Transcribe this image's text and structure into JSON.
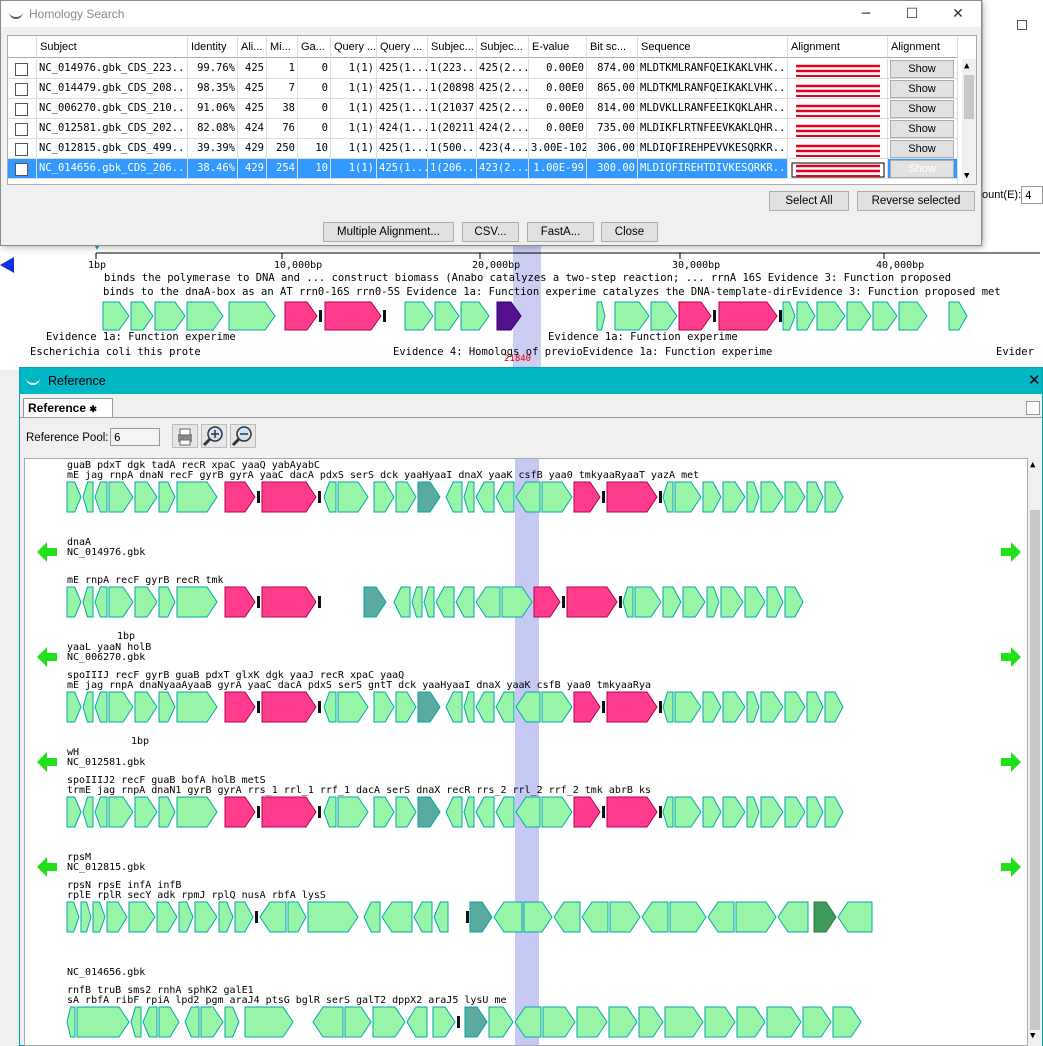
{
  "homology": {
    "title": "Homology Search",
    "columns": [
      "Subject",
      "Identity",
      "Ali...",
      "Mi...",
      "Ga...",
      "Query ...",
      "Query ...",
      "Subjec...",
      "Subjec...",
      "E-value",
      "Bit sc...",
      "Sequence",
      "Alignment",
      "Alignment"
    ],
    "rows": [
      {
        "subject": "NC_014976.gbk_CDS_223...",
        "identity": "99.76%",
        "ali": "425",
        "mi": "1",
        "ga": "0",
        "q1": "1(1)",
        "q2": "425(1...",
        "s1": "1(223...",
        "s2": "425(2...",
        "evalue": "0.00E0",
        "bit": "874.00",
        "seq": "MLDTKMLRANFQEIKAKLVHK...",
        "show": "Show",
        "selected": false
      },
      {
        "subject": "NC_014479.gbk_CDS_208...",
        "identity": "98.35%",
        "ali": "425",
        "mi": "7",
        "ga": "0",
        "q1": "1(1)",
        "q2": "425(1...",
        "s1": "1(20898)",
        "s2": "425(2...",
        "evalue": "0.00E0",
        "bit": "865.00",
        "seq": "MLDTKMLRANFQEIKAKLVHK...",
        "show": "Show",
        "selected": false
      },
      {
        "subject": "NC_006270.gbk_CDS_210...",
        "identity": "91.06%",
        "ali": "425",
        "mi": "38",
        "ga": "0",
        "q1": "1(1)",
        "q2": "425(1...",
        "s1": "1(21037)",
        "s2": "425(2...",
        "evalue": "0.00E0",
        "bit": "814.00",
        "seq": "MLDVKLLRANFEEIKQKLAHR...",
        "show": "Show",
        "selected": false
      },
      {
        "subject": "NC_012581.gbk_CDS_202...",
        "identity": "82.08%",
        "ali": "424",
        "mi": "76",
        "ga": "0",
        "q1": "1(1)",
        "q2": "424(1...",
        "s1": "1(20211)",
        "s2": "424(2...",
        "evalue": "0.00E0",
        "bit": "735.00",
        "seq": "MLDIKFLRTNFEEVKAKLQHR...",
        "show": "Show",
        "selected": false
      },
      {
        "subject": "NC_012815.gbk_CDS_499...",
        "identity": "39.39%",
        "ali": "429",
        "mi": "250",
        "ga": "10",
        "q1": "1(1)",
        "q2": "425(1...",
        "s1": "1(500...",
        "s2": "423(4...",
        "evalue": "3.00E-102",
        "bit": "306.00",
        "seq": "MLDIQFIREHPEVVKESQRKR...",
        "show": "Show",
        "selected": false
      },
      {
        "subject": "NC_014656.gbk_CDS_206...",
        "identity": "38.46%",
        "ali": "429",
        "mi": "254",
        "ga": "10",
        "q1": "1(1)",
        "q2": "425(1...",
        "s1": "1(206...",
        "s2": "423(2...",
        "evalue": "1.00E-99",
        "bit": "300.00",
        "seq": "MLDIQFIREHTDIVKESQRKR...",
        "show": "Show",
        "selected": true
      }
    ],
    "select_all": "Select All",
    "reverse_selected": "Reverse selected",
    "multiple_alignment": "Multiple Alignment...",
    "csv": "CSV...",
    "fasta": "FastA...",
    "close": "Close",
    "count_label": "ount(E):",
    "count_value": "4"
  },
  "background": {
    "ticks": [
      "1bp",
      "10,000bp",
      "20,000bp",
      "30,000bp",
      "40,000bp"
    ],
    "ann_top": "binds the polymerase to DNA and ... construct biomass (Anabo catalyzes a two-step reaction; ... rrnA 16S  Evidence 3: Function proposed",
    "ann_row1": "binds to the dnaA-box as an AT  rrn0-16S        rrn0-5S   Evidence 1a: Function experime catalyzes the DNA-template-dirEvidence 3: Function proposed   met",
    "ann_row2a": "Evidence 1a: Function experime",
    "ann_row2b": "Evidence 1a: Function experime",
    "ann_row3a": "Escherichia coli this prote",
    "ann_row3b": "Evidence 4: Homologs of previoEvidence 1a: Function experime",
    "ann_row3c": "Evider",
    "marker": "21840"
  },
  "reference": {
    "title": "Reference",
    "tab": "Reference",
    "pool_label": "Reference Pool:",
    "pool_value": "6",
    "tracks": [
      {
        "id": "",
        "top_labels": "mE jag  rnpA    dnaN recF gyrB   gyrA                           yaaC      dacA pdxS  serS dck yaaHyaaI dnaX  yaaK                csfB   yaa0 tmkyaaRyaaT  yazA  met",
        "above": "                                                                guaB          pdxT     dgk   tadA   recR             xpaC      yaaQ   yabAyabC",
        "above2": "      dnaA      yaaAyaaB"
      },
      {
        "id": "NC_014976.gbk",
        "top_labels": "mE      rnpA         recF gyrB                                                                           recR                                    tmk",
        "above": "",
        "above2": "                dnaA"
      },
      {
        "id": "NC_006270.gbk",
        "top_labels": "mE jag  rnpA    dnaNyaaAyaaB    gyrA                           yaaC      dacA pdxS  serS    gntT        dck yaaHyaaI  dnaX  yaaK               csfB   yaa0 tmkyaaRya",
        "above": "  spoIIIJ             recF gyrB                                 guaB          pdxT  glxK         dgk      yaaJ    recR              xpaC          yaaQ",
        "above2": "                                                                                                            yaaL                   yaaN        holB"
      },
      {
        "id": "NC_012581.gbk",
        "top_labels": "trmE jag  rnpA    dnaN1   gyrB   gyrA     rrs_1 rrl_1    rrf_1    dacA         serS          dnaX  recR rrs_2 rrl_2   rrf_2  tmk           abrB          ks",
        "above": "   spoIIIJ2            recF                               guaB                               bofA                  holB           metS",
        "above2": "          wH"
      },
      {
        "id": "NC_012815.gbk",
        "top_labels": "rplE  rplR   secY adk rpmJ    rplQ       nusA         rbfA                                                                                    lysS",
        "above": "  rpsN  rpsE          infA               infB",
        "above2": "                       rpsM"
      },
      {
        "id": "NC_014656.gbk",
        "top_labels": "sA            rbfA ribF         rpiA   lpd2        pgm    araJ4  ptsG   bglR  serS                           galT2              dppX2         araJ5 lysU  me",
        "above": "  rnfB         truB     sms2        rnhA                                   sphK2                         galE1",
        "above2": ""
      }
    ],
    "track_1bp": "1bp"
  }
}
